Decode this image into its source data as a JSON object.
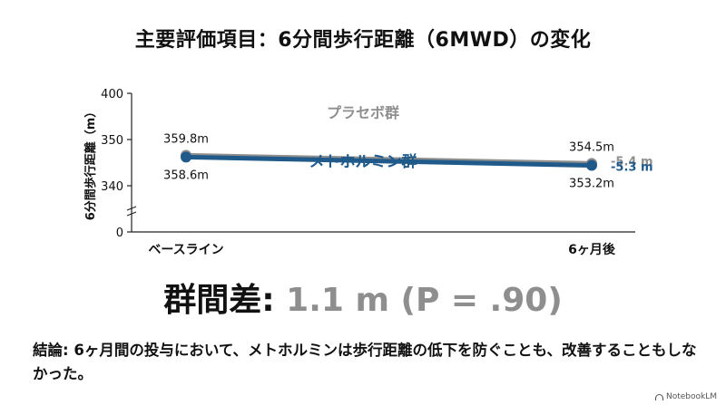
{
  "title": "主要評価項目：6分間歩行距離（6MWD）の変化",
  "chart_data": {
    "type": "line",
    "categories": [
      "ベースライン",
      "6ヶ月後"
    ],
    "ylabel": "6分間歩行距離（m）",
    "ylim": [
      0,
      400
    ],
    "y_ticks": [
      "0",
      "340",
      "350",
      "400"
    ],
    "axis_break": true,
    "grid": false,
    "series": [
      {
        "name": "プラセボ群",
        "values": [
          359.8,
          354.5
        ],
        "point_labels": [
          "359.8m",
          "354.5m"
        ],
        "change_label": "-5.4 m",
        "color": "#8e8e8e"
      },
      {
        "name": "メトホルミン群",
        "values": [
          358.6,
          353.2
        ],
        "point_labels": [
          "358.6m",
          "353.2m"
        ],
        "change_label": "-5.3 m",
        "color": "#1f5a8a"
      }
    ]
  },
  "difference": {
    "label": "群間差:",
    "value": "1.1 m (P = .90)"
  },
  "conclusion": "結論: 6ヶ月間の投与において、メトホルミンは歩行距離の低下を防ぐことも、改善することもしなかった。",
  "brand": "NotebookLM"
}
